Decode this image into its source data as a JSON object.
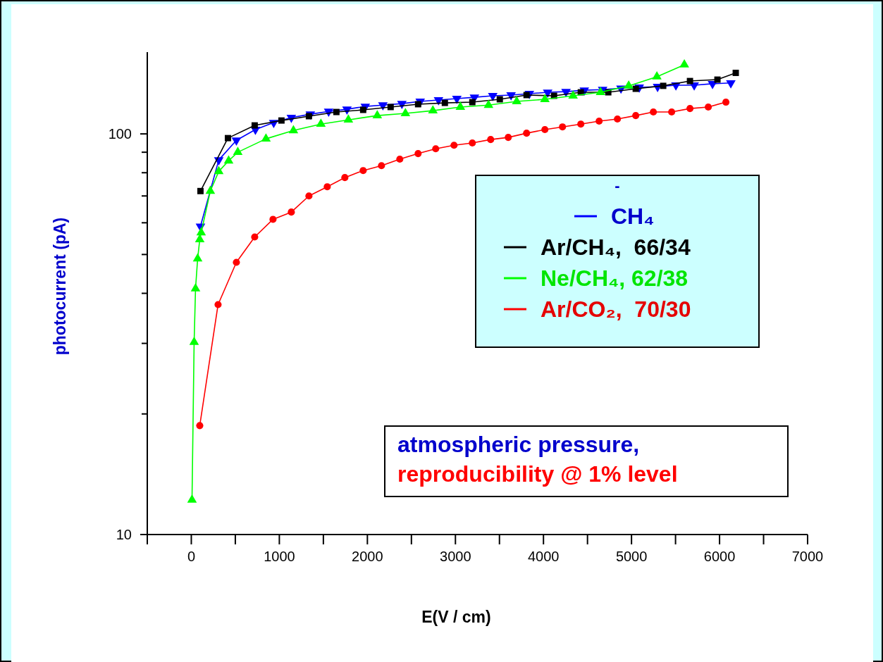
{
  "chart_data": {
    "type": "line",
    "xlabel": "E(V / cm)",
    "ylabel": "photocurrent (pA)",
    "log": "y",
    "xlim": [
      -500,
      7000
    ],
    "ylim": [
      10,
      160
    ],
    "xticks": [
      {
        "value": -500,
        "label": null
      },
      0,
      {
        "value": 500,
        "label": null
      },
      1000,
      {
        "value": 1500,
        "label": null
      },
      2000,
      {
        "value": 2500,
        "label": null
      },
      3000,
      {
        "value": 3500,
        "label": null
      },
      4000,
      {
        "value": 4500,
        "label": null
      },
      5000,
      {
        "value": 5500,
        "label": null
      },
      6000,
      {
        "value": 6500,
        "label": null
      },
      7000
    ],
    "yticks": [
      10,
      {
        "value": 20,
        "label": null
      },
      {
        "value": 30,
        "label": null
      },
      {
        "value": 40,
        "label": null
      },
      {
        "value": 50,
        "label": null
      },
      {
        "value": 60,
        "label": null
      },
      {
        "value": 70,
        "label": null
      },
      {
        "value": 80,
        "label": null
      },
      {
        "value": 90,
        "label": null
      },
      100
    ],
    "grid": false,
    "legend": "right",
    "legend_title": "-",
    "line_style": "solid",
    "annotations": [
      "atmospheric pressure,",
      "reproducibility @ 1% level"
    ],
    "series": [
      {
        "name": "CH₄",
        "color": "#0000ff",
        "marker": "triangle-down",
        "x": [
          104,
          312,
          512,
          728,
          936,
          1136,
          1352,
          1560,
          1768,
          1976,
          2176,
          2392,
          2600,
          2808,
          3016,
          3216,
          3424,
          3632,
          3840,
          4048,
          4256,
          4464,
          4672,
          4880,
          5088,
          5296,
          5504,
          5712,
          5920,
          6128
        ],
        "values": [
          58.8,
          86.1,
          96.4,
          102.5,
          106.7,
          109.8,
          112,
          113.8,
          115.2,
          117.1,
          118,
          119,
          120.5,
          121.5,
          122.5,
          123.4,
          124.5,
          125,
          126,
          127,
          127.5,
          128.5,
          129,
          130,
          130.7,
          131.2,
          132.3,
          132.3,
          133.4,
          134
        ]
      },
      {
        "name": "Ar/CH₄,  66/34",
        "color": "#000000",
        "marker": "square",
        "x": [
          104,
          416,
          720,
          1024,
          1336,
          1648,
          1952,
          2264,
          2576,
          2880,
          3192,
          3504,
          3808,
          4120,
          4424,
          4736,
          5048,
          5360,
          5664,
          5976,
          6184
        ],
        "values": [
          72,
          97.6,
          105,
          108,
          110.7,
          113.4,
          114.8,
          116.7,
          118.6,
          119.5,
          120,
          122,
          125,
          124.5,
          127,
          127,
          129.6,
          131.8,
          135.5,
          136.6,
          142
        ]
      },
      {
        "name": "Ne/CH₄, 62/38",
        "color": "#00ff00",
        "marker": "triangle",
        "x": [
          8,
          32,
          48,
          72,
          96,
          112,
          216,
          312,
          424,
          528,
          848,
          1160,
          1472,
          1784,
          2112,
          2432,
          2744,
          3056,
          3376,
          3696,
          4016,
          4336,
          4648,
          4968,
          5288,
          5600
        ],
        "values": [
          12.2,
          30.2,
          41.1,
          48.8,
          54.5,
          56.7,
          72,
          80.6,
          85.7,
          90,
          97.2,
          102,
          105.8,
          108.4,
          111.1,
          112.5,
          114.3,
          116.7,
          118,
          120.5,
          122,
          124.5,
          127,
          131.8,
          138.9,
          148.8
        ]
      },
      {
        "name": "Ar/CO₂,  70/30",
        "color": "#ff0000",
        "marker": "circle",
        "x": [
          96,
          304,
          512,
          720,
          928,
          1136,
          1336,
          1544,
          1744,
          1952,
          2160,
          2368,
          2576,
          2776,
          2984,
          3192,
          3400,
          3600,
          3808,
          4016,
          4216,
          4424,
          4632,
          4840,
          5048,
          5248,
          5456,
          5664,
          5872,
          6072
        ],
        "values": [
          18.7,
          37.5,
          47.8,
          55.3,
          61.2,
          63.8,
          70,
          73.8,
          77.8,
          81,
          83.3,
          86.5,
          89.3,
          91.8,
          93.7,
          94.9,
          96.8,
          98,
          100.4,
          102.5,
          104.1,
          105.8,
          107.6,
          108.9,
          111.1,
          113.4,
          113.4,
          115.7,
          116.7,
          120
        ]
      }
    ]
  }
}
